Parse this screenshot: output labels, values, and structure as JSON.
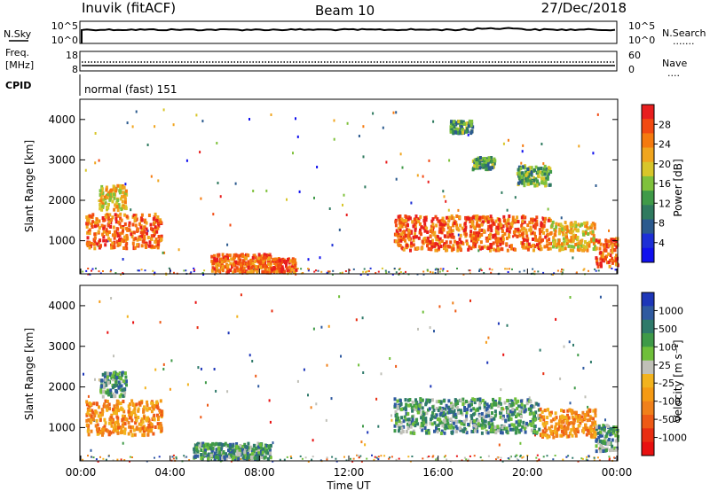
{
  "header": {
    "station": "Inuvik (fitACF)",
    "beam": "Beam 10",
    "date": "27/Dec/2018"
  },
  "nsky_panel": {
    "label": "N.Sky",
    "left_ticks": [
      "10^5",
      "10^0"
    ],
    "right_ticks": [
      "10^5",
      "10^0"
    ],
    "right_label": "N.Search",
    "right_legend": "......."
  },
  "freq_panel": {
    "label_line1": "Freq.",
    "label_line2": "[MHz]",
    "left_ticks": [
      "18",
      "8"
    ],
    "right_ticks": [
      "60",
      "0"
    ],
    "right_label": "Nave",
    "right_legend": "...."
  },
  "cpid": {
    "label": "CPID",
    "mode": "normal (fast) 151"
  },
  "chart_data": [
    {
      "type": "heatmap",
      "name": "power",
      "ylabel": "Slant Range [km]",
      "y_ticks": [
        "4000",
        "3000",
        "2000",
        "1000"
      ],
      "y_values": [
        4000,
        3000,
        2000,
        1000
      ],
      "ylim": [
        180,
        4500
      ],
      "xlim_hours": [
        0,
        24
      ],
      "colorbar_label": "Power [dB]",
      "colorbar_ticks": [
        "28",
        "24",
        "20",
        "16",
        "12",
        "8",
        "4"
      ],
      "colorbar_colors": [
        "#e81e1e",
        "#f24a12",
        "#f57a0f",
        "#f0a51e",
        "#d8c62a",
        "#7fc13c",
        "#3f9a48",
        "#2f7a5f",
        "#2b5a8e",
        "#1d2fd6",
        "#1010ee"
      ],
      "regions": [
        {
          "t0": 0.2,
          "t1": 3.6,
          "r0": 850,
          "r1": 1700,
          "level": "high"
        },
        {
          "t0": 0.8,
          "t1": 2.0,
          "r0": 1800,
          "r1": 2400,
          "level": "mid"
        },
        {
          "t0": 5.8,
          "t1": 8.5,
          "r0": 250,
          "r1": 700,
          "level": "high"
        },
        {
          "t0": 8.5,
          "t1": 9.6,
          "r0": 250,
          "r1": 600,
          "level": "high"
        },
        {
          "t0": 14.0,
          "t1": 21.0,
          "r0": 800,
          "r1": 1650,
          "level": "high"
        },
        {
          "t0": 21.0,
          "t1": 23.0,
          "r0": 800,
          "r1": 1500,
          "level": "mid"
        },
        {
          "t0": 23.0,
          "t1": 24.0,
          "r0": 400,
          "r1": 1100,
          "level": "high"
        },
        {
          "t0": 16.5,
          "t1": 17.5,
          "r0": 3700,
          "r1": 4000,
          "level": "low"
        },
        {
          "t0": 17.5,
          "t1": 18.5,
          "r0": 2800,
          "r1": 3100,
          "level": "low"
        },
        {
          "t0": 19.5,
          "t1": 21.0,
          "r0": 2400,
          "r1": 2900,
          "level": "low"
        }
      ]
    },
    {
      "type": "heatmap",
      "name": "velocity",
      "ylabel": "Slant Range [km]",
      "y_ticks": [
        "4000",
        "3000",
        "2000",
        "1000"
      ],
      "y_values": [
        4000,
        3000,
        2000,
        1000
      ],
      "ylim": [
        180,
        4500
      ],
      "xlim_hours": [
        0,
        24
      ],
      "xlabel": "Time UT",
      "x_ticks": [
        "00:00",
        "04:00",
        "08:00",
        "12:00",
        "16:00",
        "20:00",
        "00:00"
      ],
      "x_values": [
        0,
        4,
        8,
        12,
        16,
        20,
        24
      ],
      "colorbar_label": "Velocity [m s⁻¹]",
      "colorbar_ticks": [
        "1000",
        "500",
        "100",
        "25",
        "-25",
        "-100",
        "-500",
        "-1000"
      ],
      "colorbar_colors": [
        "#1d36b8",
        "#2f5aa0",
        "#2f7a6a",
        "#3f9a48",
        "#6fbf3a",
        "#c0c0b8",
        "#f2b31e",
        "#f59a14",
        "#f0801a",
        "#ee5a16",
        "#e82e12",
        "#e81010"
      ],
      "regions": [
        {
          "t0": 0.2,
          "t1": 3.6,
          "r0": 850,
          "r1": 1700,
          "level": "neg"
        },
        {
          "t0": 0.8,
          "t1": 2.0,
          "r0": 1800,
          "r1": 2400,
          "level": "pos"
        },
        {
          "t0": 5.0,
          "t1": 8.5,
          "r0": 250,
          "r1": 650,
          "level": "pos"
        },
        {
          "t0": 14.0,
          "t1": 20.5,
          "r0": 900,
          "r1": 1750,
          "level": "pos"
        },
        {
          "t0": 20.5,
          "t1": 23.0,
          "r0": 800,
          "r1": 1500,
          "level": "neg"
        },
        {
          "t0": 23.0,
          "t1": 24.0,
          "r0": 450,
          "r1": 1100,
          "level": "pos"
        }
      ]
    }
  ]
}
